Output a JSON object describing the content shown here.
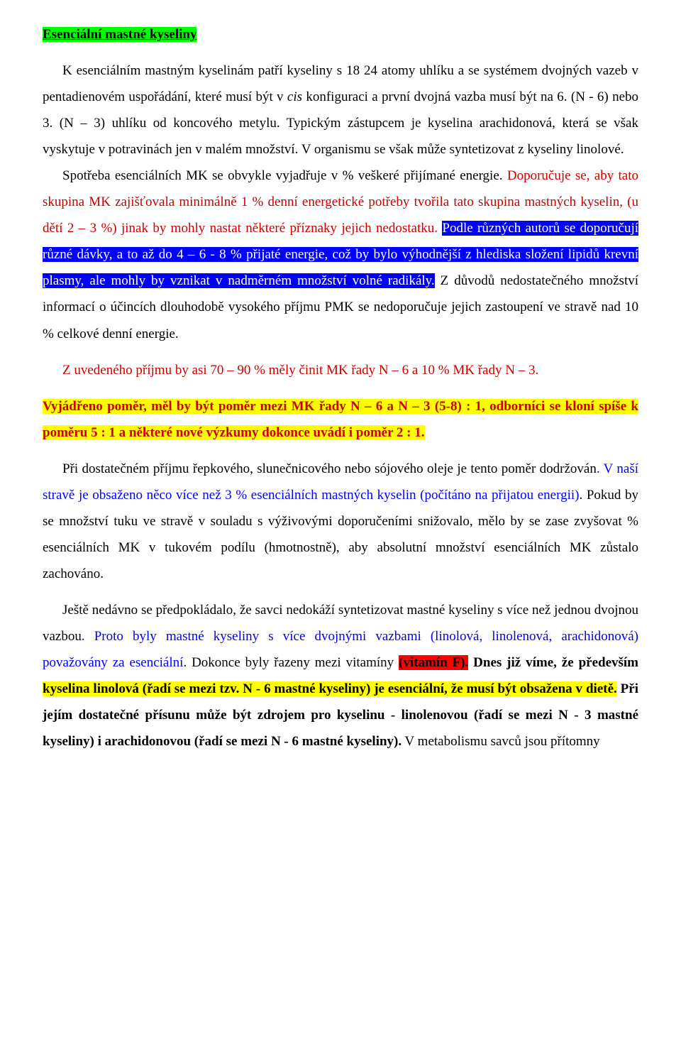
{
  "title": "Esenciální mastné kyseliny",
  "p1_a": "K esenciálním mastným kyselinám patří kyseliny s 18 24 atomy uhlíku a se systémem dvojných vazeb v pentadienovém uspořádání, které musí být v ",
  "p1_cis": "cis",
  "p1_b": " konfiguraci a první dvojná vazba musí být na 6. (N - 6) nebo 3. (N – 3) uhlíku od koncového metylu. Typickým zástupcem je kyselina arachidonová, která se však vyskytuje v potravinách jen v malém množství. V organismu se však může syntetizovat z kyseliny linolové.",
  "p2_a": "Spotřeba esenciálních MK se obvykle vyjadřuje v % veškeré přijímané energie. ",
  "p2_b": "Doporučuje se, aby tato skupina MK zajišťovala minimálně 1 % denní energetické potřeby tvořila tato skupina mastných kyselin, (u dětí 2 – 3 %) jinak by mohly nastat některé příznaky jejich nedostatku. ",
  "p2_c": "Podle různých autorů se doporučují různé dávky, a to až do 4 – 6 - 8 % přijaté energie, což by bylo výhodnější z hlediska složení lipidů krevní plasmy, ale mohly by vznikat v nadměrném množství volné radikály.",
  "p2_d": " Z důvodů nedostatečného množství informací o účincích dlouhodobě vysokého příjmu PMK se nedoporučuje jejich zastoupení ve stravě nad 10 % celkové denní energie.",
  "p3": "Z uvedeného příjmu by asi 70 – 90 % měly činit MK řady N – 6 a 10 % MK řady N – 3.",
  "p4": "Vyjádřeno poměr, měl by být poměr mezi MK řady N – 6 a N – 3  (5-8) : 1, odborníci se kloní spíše k poměru 5 : 1 a některé nové výzkumy dokonce uvádí i poměr 2 : 1.",
  "p5_a": "Při dostatečném příjmu řepkového, slunečnicového nebo sójového oleje je tento poměr dodržován",
  "p5_b": ". V naší stravě je obsaženo něco více než 3 % esenciálních mastných kyselin (počítáno na přijatou energii)",
  "p5_c": ". Pokud by se množství tuku ve stravě v souladu s výživovými doporučeními snižovalo, mělo by se zase zvyšovat % esenciálních MK v tukovém podílu (hmotnostně), aby absolutní množství esenciálních MK zůstalo zachováno.",
  "p6_a": "Ještě nedávno se předpokládalo, že savci nedokáží syntetizovat mastné kyseliny s více než jednou dvojnou vazbou",
  "p6_b": ". Proto byly mastné kyseliny s více dvojnými vazbami (linolová, linolenová, arachidonová) považovány za esenciální",
  "p6_c": ". Dokonce byly řazeny mezi vitamíny ",
  "p6_d": "(vitamín F).",
  "p6_e": " Dnes již víme, že především ",
  "p6_f": "kyselina linolová (řadí se mezi tzv. N - 6 mastné kyseliny) je esenciální, že  musí být obsažena v dietě.",
  "p6_g": " Při jejím dostatečné přísunu může být zdrojem pro kyselinu   - linolenovou (řadí se mezi N - 3 mastné kyseliny) i arachidonovou (řadí se mezi N - 6 mastné kyseliny).",
  "p6_h": " V metabolismu savců jsou přítomny"
}
